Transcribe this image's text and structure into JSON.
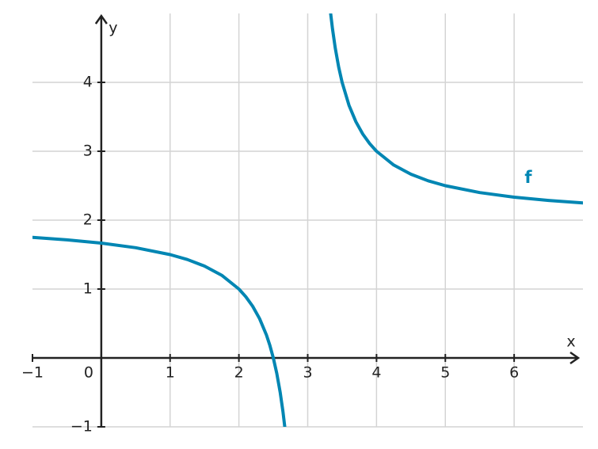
{
  "chart_data": {
    "type": "line",
    "x_label": "x",
    "y_label": "y",
    "x": [
      -1,
      -0.5,
      0,
      0.5,
      1,
      1.25,
      1.5,
      1.75,
      2,
      2.1,
      2.2,
      2.3,
      2.4,
      2.45,
      2.5,
      2.55,
      2.6,
      2.64,
      2.667,
      3,
      3.333,
      3.36,
      3.4,
      3.45,
      3.5,
      3.6,
      3.7,
      3.8,
      3.9,
      4,
      4.25,
      4.5,
      4.75,
      5,
      5.5,
      6,
      6.5,
      7
    ],
    "series": [
      {
        "name": "f",
        "color": "#0086b3",
        "values": [
          1.75,
          1.714,
          1.667,
          1.6,
          1.5,
          1.429,
          1.333,
          1.2,
          1,
          0.889,
          0.75,
          0.571,
          0.333,
          0.182,
          0,
          -0.222,
          -0.5,
          -0.778,
          -1.003,
          null,
          5.003,
          4.778,
          4.5,
          4.222,
          4,
          3.667,
          3.429,
          3.25,
          3.111,
          3,
          2.8,
          2.667,
          2.571,
          2.5,
          2.4,
          2.333,
          2.286,
          2.25
        ]
      }
    ],
    "xlim": [
      -1,
      7
    ],
    "ylim": [
      -1,
      5
    ],
    "xticks": [
      {
        "value": -1,
        "label": "−1"
      },
      0,
      1,
      2,
      3,
      4,
      5,
      6
    ],
    "yticks": [
      {
        "value": -1,
        "label": "−1"
      },
      1,
      2,
      3,
      4
    ],
    "grid": true
  }
}
